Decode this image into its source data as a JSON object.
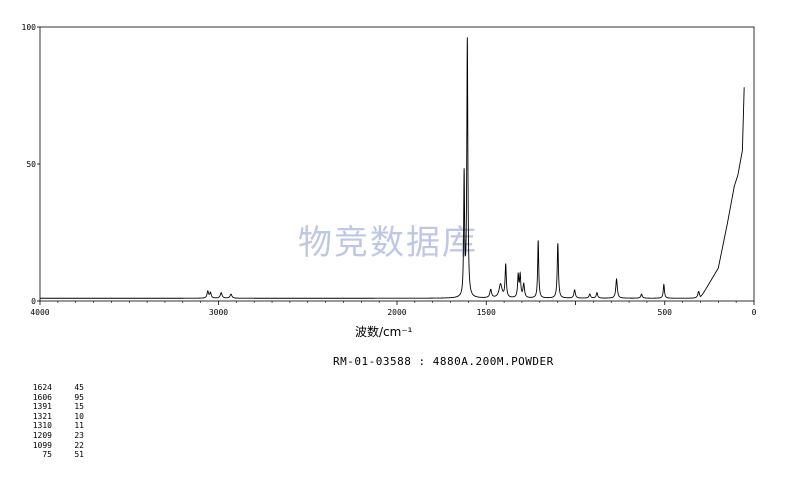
{
  "chart_data": {
    "type": "line",
    "xlabel": "波数/cm⁻¹",
    "ylabel": "",
    "xlim": [
      4000,
      0
    ],
    "ylim": [
      0,
      100
    ],
    "x_reversed": true,
    "xticks": [
      4000,
      3000,
      2000,
      1500,
      1000,
      500,
      0
    ],
    "xtick_labels": [
      "4000",
      "3000",
      "2000",
      "1500",
      "",
      "500",
      "0"
    ],
    "yticks": [
      0,
      50,
      100
    ],
    "ytick_labels": [
      "0",
      "50",
      "100"
    ],
    "grid": false,
    "series": [
      {
        "baseline": 1,
        "background_rise": [
          {
            "x": 300,
            "y": 3
          },
          {
            "x": 200,
            "y": 12
          },
          {
            "x": 150,
            "y": 28
          },
          {
            "x": 110,
            "y": 42
          },
          {
            "x": 90,
            "y": 46
          },
          {
            "x": 65,
            "y": 55
          },
          {
            "x": 55,
            "y": 78
          }
        ],
        "peaks": [
          {
            "x": 3060,
            "y": 3.5,
            "w": 5
          },
          {
            "x": 3045,
            "y": 3,
            "w": 5
          },
          {
            "x": 2985,
            "y": 3,
            "w": 6
          },
          {
            "x": 2930,
            "y": 2.5,
            "w": 6
          },
          {
            "x": 1624,
            "y": 45,
            "w": 3
          },
          {
            "x": 1606,
            "y": 95,
            "w": 3.5
          },
          {
            "x": 1475,
            "y": 4,
            "w": 6
          },
          {
            "x": 1420,
            "y": 6,
            "w": 10
          },
          {
            "x": 1391,
            "y": 13,
            "w": 4
          },
          {
            "x": 1321,
            "y": 9,
            "w": 4
          },
          {
            "x": 1310,
            "y": 9,
            "w": 4
          },
          {
            "x": 1290,
            "y": 6,
            "w": 5
          },
          {
            "x": 1209,
            "y": 22,
            "w": 3.5
          },
          {
            "x": 1099,
            "y": 21,
            "w": 4
          },
          {
            "x": 1005,
            "y": 4,
            "w": 5
          },
          {
            "x": 920,
            "y": 2.5,
            "w": 5
          },
          {
            "x": 880,
            "y": 3,
            "w": 5
          },
          {
            "x": 770,
            "y": 8,
            "w": 5
          },
          {
            "x": 630,
            "y": 2.5,
            "w": 5
          },
          {
            "x": 505,
            "y": 6,
            "w": 4
          },
          {
            "x": 310,
            "y": 3.5,
            "w": 6
          }
        ]
      }
    ]
  },
  "watermark": "物竞数据库",
  "sample_id": "RM-01-03588 : 4880A.200M.POWDER",
  "peak_table": [
    {
      "x": "1624",
      "y": "45"
    },
    {
      "x": "1606",
      "y": "95"
    },
    {
      "x": "1391",
      "y": "15"
    },
    {
      "x": "1321",
      "y": "10"
    },
    {
      "x": "1310",
      "y": "11"
    },
    {
      "x": "1209",
      "y": "23"
    },
    {
      "x": "1099",
      "y": "22"
    },
    {
      "x": "75",
      "y": "51"
    }
  ]
}
